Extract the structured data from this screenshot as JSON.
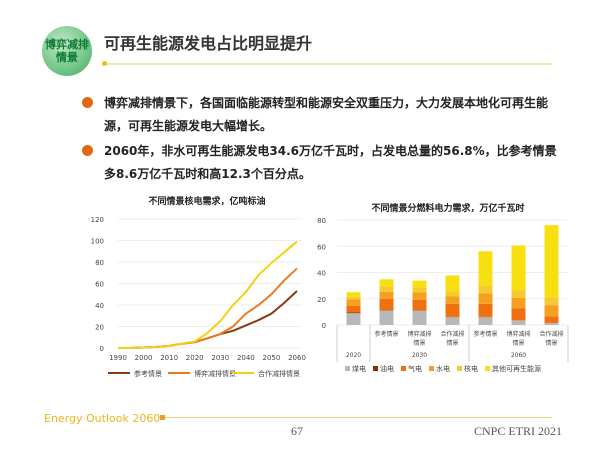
{
  "header": {
    "logo_line1": "博弈减排",
    "logo_line2": "情景",
    "title": "可再生能源发电占比明显提升"
  },
  "bullets": [
    "博弈减排情景下，各国面临能源转型和能源安全双重压力，大力发展本地化可再生能源，可再生能源发电大幅增长。",
    "2060年，非水可再生能源发电34.6万亿千瓦时，占发电总量的56.8%，比参考情景多8.6万亿千瓦时和高12.3个百分点。"
  ],
  "chart_data": [
    {
      "type": "line",
      "title": "不同情景核电需求，亿吨标油",
      "x": [
        1990,
        1995,
        2000,
        2005,
        2010,
        2015,
        2020,
        2025,
        2030,
        2035,
        2040,
        2045,
        2050,
        2055,
        2060
      ],
      "xticks": [
        "1990",
        "2000",
        "2010",
        "2020",
        "2030",
        "2040",
        "2050",
        "2060"
      ],
      "yticks": [
        "0",
        "20",
        "40",
        "60",
        "80",
        "100",
        "120"
      ],
      "ylim": [
        0,
        120
      ],
      "grid": true,
      "legend": "bottom",
      "series": [
        {
          "name": "参考情景",
          "color": "#8b3a10",
          "values": [
            0,
            0,
            0.5,
            1,
            2,
            4,
            5.5,
            9,
            13,
            16,
            21,
            26,
            32,
            42,
            53
          ]
        },
        {
          "name": "博弈减排情景",
          "color": "#ee7a20",
          "values": [
            0,
            0,
            0.5,
            1,
            2,
            4,
            5.5,
            9,
            13,
            20,
            32,
            40,
            50,
            63,
            74
          ]
        },
        {
          "name": "合作减排情景",
          "color": "#f5d010",
          "values": [
            0,
            0,
            0.5,
            1,
            2,
            4,
            6,
            14,
            25,
            40,
            52,
            68,
            79,
            89,
            99
          ]
        }
      ]
    },
    {
      "type": "bar",
      "stacked": true,
      "title": "不同情景分燃料电力需求，万亿千瓦时",
      "ylim": [
        0,
        80
      ],
      "yticks": [
        "0",
        "20",
        "40",
        "60",
        "80"
      ],
      "grid": true,
      "legend": "bottom",
      "categories": [
        "",
        "参考情景",
        "博弈减排情景",
        "合作减排情景",
        "参考情景",
        "博弈减排情景",
        "合作减排情景"
      ],
      "groups": [
        {
          "label": "2020",
          "count": 1
        },
        {
          "label": "2030",
          "count": 3
        },
        {
          "label": "2060",
          "count": 3
        }
      ],
      "series": [
        {
          "name": "煤电",
          "color": "#b8b8b8",
          "values": [
            9,
            11,
            11,
            6,
            6,
            3.5,
            1.5
          ]
        },
        {
          "name": "油电",
          "color": "#8b2a10",
          "values": [
            0.5,
            0.3,
            0.3,
            0.2,
            0.2,
            0.1,
            0.1
          ]
        },
        {
          "name": "气电",
          "color": "#f07010",
          "values": [
            5,
            8.5,
            8,
            10,
            10,
            9,
            5
          ]
        },
        {
          "name": "水电",
          "color": "#f5a020",
          "values": [
            5,
            5.5,
            5.5,
            5.5,
            8,
            8,
            8.5
          ]
        },
        {
          "name": "核电",
          "color": "#f8c830",
          "values": [
            2,
            4,
            4,
            4,
            6,
            6,
            6
          ]
        },
        {
          "name": "其他可再生能源",
          "color": "#f8e010",
          "values": [
            3.5,
            5.5,
            5,
            12,
            26,
            34,
            55
          ]
        }
      ]
    }
  ],
  "footer": {
    "left": "Energy Outlook 2060",
    "page": "67",
    "right": "CNPC ETRI 2021"
  }
}
